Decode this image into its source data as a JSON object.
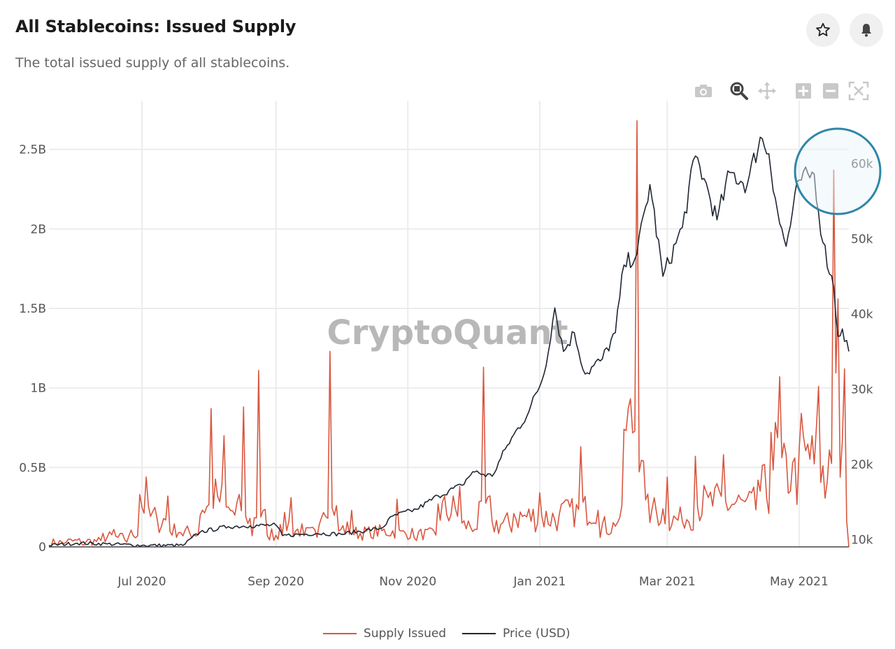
{
  "header": {
    "title": "All Stablecoins: Issued Supply",
    "subtitle": "The total issued supply of all stablecoins."
  },
  "actions": {
    "favorite_icon": "star-icon",
    "alert_icon": "bell-icon"
  },
  "toolbar": {
    "icons": [
      "camera-icon",
      "zoom-icon",
      "pan-icon",
      "zoom-in-icon",
      "zoom-out-icon",
      "autoscale-icon"
    ]
  },
  "watermark": "CryptoQuant",
  "colors": {
    "supply": "#d9573f",
    "price": "#1f2733",
    "highlight": "#2e86a8"
  },
  "chart_data": {
    "type": "line",
    "x_ticks": [
      "Jul 2020",
      "Sep 2020",
      "Nov 2020",
      "Jan 2021",
      "Mar 2021",
      "May 2021"
    ],
    "x_range": [
      "2020-05-19",
      "2021-05-24"
    ],
    "y_left": {
      "ticks": [
        "0",
        "0.5B",
        "1B",
        "1.5B",
        "2B",
        "2.5B"
      ],
      "range": [
        0,
        2.78
      ]
    },
    "y_right": {
      "ticks": [
        "10k",
        "20k",
        "30k",
        "40k",
        "50k",
        "60k"
      ],
      "range": [
        9000,
        67800
      ]
    },
    "grid": true,
    "legend_position": "bottom-center",
    "series": [
      {
        "name": "Supply Issued",
        "axis": "left",
        "unit": "B",
        "points": [
          [
            "2020-05-19",
            0.0
          ],
          [
            "2020-05-27",
            0.03
          ],
          [
            "2020-06-04",
            0.01
          ],
          [
            "2020-06-12",
            0.04
          ],
          [
            "2020-06-18",
            0.11
          ],
          [
            "2020-06-24",
            0.03
          ],
          [
            "2020-06-30",
            0.33
          ],
          [
            "2020-07-03",
            0.44
          ],
          [
            "2020-07-08",
            0.18
          ],
          [
            "2020-07-13",
            0.32
          ],
          [
            "2020-07-20",
            0.07
          ],
          [
            "2020-07-28",
            0.2
          ],
          [
            "2020-08-02",
            0.87
          ],
          [
            "2020-08-05",
            0.32
          ],
          [
            "2020-08-08",
            0.7
          ],
          [
            "2020-08-13",
            0.2
          ],
          [
            "2020-08-17",
            0.88
          ],
          [
            "2020-08-21",
            0.07
          ],
          [
            "2020-08-24",
            1.11
          ],
          [
            "2020-08-28",
            0.07
          ],
          [
            "2020-09-03",
            0.14
          ],
          [
            "2020-09-08",
            0.31
          ],
          [
            "2020-09-14",
            0.07
          ],
          [
            "2020-09-21",
            0.14
          ],
          [
            "2020-09-26",
            1.23
          ],
          [
            "2020-09-30",
            0.1
          ],
          [
            "2020-10-06",
            0.23
          ],
          [
            "2020-10-15",
            0.06
          ],
          [
            "2020-10-27",
            0.3
          ],
          [
            "2020-11-05",
            0.04
          ],
          [
            "2020-11-15",
            0.27
          ],
          [
            "2020-11-25",
            0.38
          ],
          [
            "2020-12-03",
            0.11
          ],
          [
            "2020-12-06",
            1.13
          ],
          [
            "2020-12-10",
            0.16
          ],
          [
            "2020-12-20",
            0.21
          ],
          [
            "2021-01-01",
            0.34
          ],
          [
            "2021-01-10",
            0.2
          ],
          [
            "2021-01-20",
            0.63
          ],
          [
            "2021-01-28",
            0.23
          ],
          [
            "2021-02-05",
            0.13
          ],
          [
            "2021-02-09",
            0.74
          ],
          [
            "2021-02-15",
            2.68
          ],
          [
            "2021-02-18",
            0.54
          ],
          [
            "2021-02-22",
            0.24
          ],
          [
            "2021-03-01",
            0.44
          ],
          [
            "2021-03-08",
            0.16
          ],
          [
            "2021-03-14",
            0.57
          ],
          [
            "2021-03-20",
            0.31
          ],
          [
            "2021-03-27",
            0.58
          ],
          [
            "2021-04-04",
            0.3
          ],
          [
            "2021-04-12",
            0.42
          ],
          [
            "2021-04-18",
            0.72
          ],
          [
            "2021-04-22",
            1.07
          ],
          [
            "2021-04-28",
            0.53
          ],
          [
            "2021-05-02",
            0.84
          ],
          [
            "2021-05-07",
            0.7
          ],
          [
            "2021-05-10",
            1.01
          ],
          [
            "2021-05-14",
            0.41
          ],
          [
            "2021-05-17",
            2.37
          ],
          [
            "2021-05-19",
            1.56
          ],
          [
            "2021-05-21",
            0.67
          ],
          [
            "2021-05-22",
            1.12
          ],
          [
            "2021-05-24",
            0.0
          ]
        ]
      },
      {
        "name": "Price (USD)",
        "axis": "right",
        "unit": "USD",
        "points": [
          [
            "2020-05-19",
            9200
          ],
          [
            "2020-06-01",
            9500
          ],
          [
            "2020-06-15",
            9400
          ],
          [
            "2020-07-01",
            9200
          ],
          [
            "2020-07-20",
            9200
          ],
          [
            "2020-07-28",
            11000
          ],
          [
            "2020-08-10",
            11700
          ],
          [
            "2020-08-20",
            11800
          ],
          [
            "2020-09-01",
            11900
          ],
          [
            "2020-09-04",
            10500
          ],
          [
            "2020-09-20",
            10800
          ],
          [
            "2020-10-01",
            10700
          ],
          [
            "2020-10-20",
            11500
          ],
          [
            "2020-10-25",
            13100
          ],
          [
            "2020-11-05",
            14000
          ],
          [
            "2020-11-15",
            15800
          ],
          [
            "2020-11-26",
            17200
          ],
          [
            "2020-12-01",
            19000
          ],
          [
            "2020-12-10",
            18400
          ],
          [
            "2020-12-17",
            22500
          ],
          [
            "2020-12-27",
            27000
          ],
          [
            "2021-01-03",
            32000
          ],
          [
            "2021-01-08",
            40800
          ],
          [
            "2021-01-12",
            35000
          ],
          [
            "2021-01-17",
            37500
          ],
          [
            "2021-01-22",
            32000
          ],
          [
            "2021-01-30",
            34000
          ],
          [
            "2021-02-05",
            37500
          ],
          [
            "2021-02-09",
            46500
          ],
          [
            "2021-02-15",
            48000
          ],
          [
            "2021-02-21",
            57200
          ],
          [
            "2021-02-27",
            45000
          ],
          [
            "2021-03-08",
            51500
          ],
          [
            "2021-03-14",
            61000
          ],
          [
            "2021-03-18",
            58000
          ],
          [
            "2021-03-24",
            52500
          ],
          [
            "2021-03-30",
            58800
          ],
          [
            "2021-04-07",
            57200
          ],
          [
            "2021-04-13",
            63500
          ],
          [
            "2021-04-17",
            61300
          ],
          [
            "2021-04-22",
            52000
          ],
          [
            "2021-04-25",
            49000
          ],
          [
            "2021-05-01",
            57800
          ],
          [
            "2021-05-08",
            58600
          ],
          [
            "2021-05-12",
            49500
          ],
          [
            "2021-05-17",
            43500
          ],
          [
            "2021-05-19",
            37000
          ],
          [
            "2021-05-21",
            38000
          ],
          [
            "2021-05-24",
            35000
          ]
        ]
      }
    ],
    "annotation": "highlight circle around May 2021 peak"
  }
}
